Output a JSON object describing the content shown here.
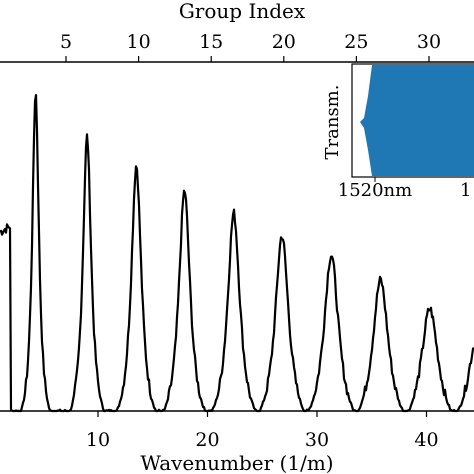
{
  "chart_data": [
    {
      "type": "line",
      "title": "",
      "xlabel": "Wavenumber (1/m)",
      "xlim": [
        0,
        45
      ],
      "x_ticks": [
        "10",
        "20",
        "30",
        "40"
      ],
      "top_axis": {
        "label": "Group Index",
        "ticks": [
          "5",
          "10",
          "15",
          "20",
          "25",
          "30"
        ]
      },
      "grid": false,
      "series": [
        {
          "color": "#000000",
          "peaks": [
            {
              "x": 4.3,
              "value": 1.0
            },
            {
              "x": 9.0,
              "value": 0.86
            },
            {
              "x": 13.5,
              "value": 0.77
            },
            {
              "x": 17.9,
              "value": 0.69
            },
            {
              "x": 22.4,
              "value": 0.62
            },
            {
              "x": 26.8,
              "value": 0.55
            },
            {
              "x": 31.3,
              "value": 0.49
            },
            {
              "x": 35.8,
              "value": 0.41
            },
            {
              "x": 40.3,
              "value": 0.32
            },
            {
              "x": 44.6,
              "value": 0.23
            }
          ]
        }
      ]
    },
    {
      "type": "area",
      "ylabel": "Transm.",
      "x_ticks": [
        "1520nm",
        "1"
      ],
      "series": [
        {
          "color": "#1f77b4"
        }
      ]
    }
  ]
}
